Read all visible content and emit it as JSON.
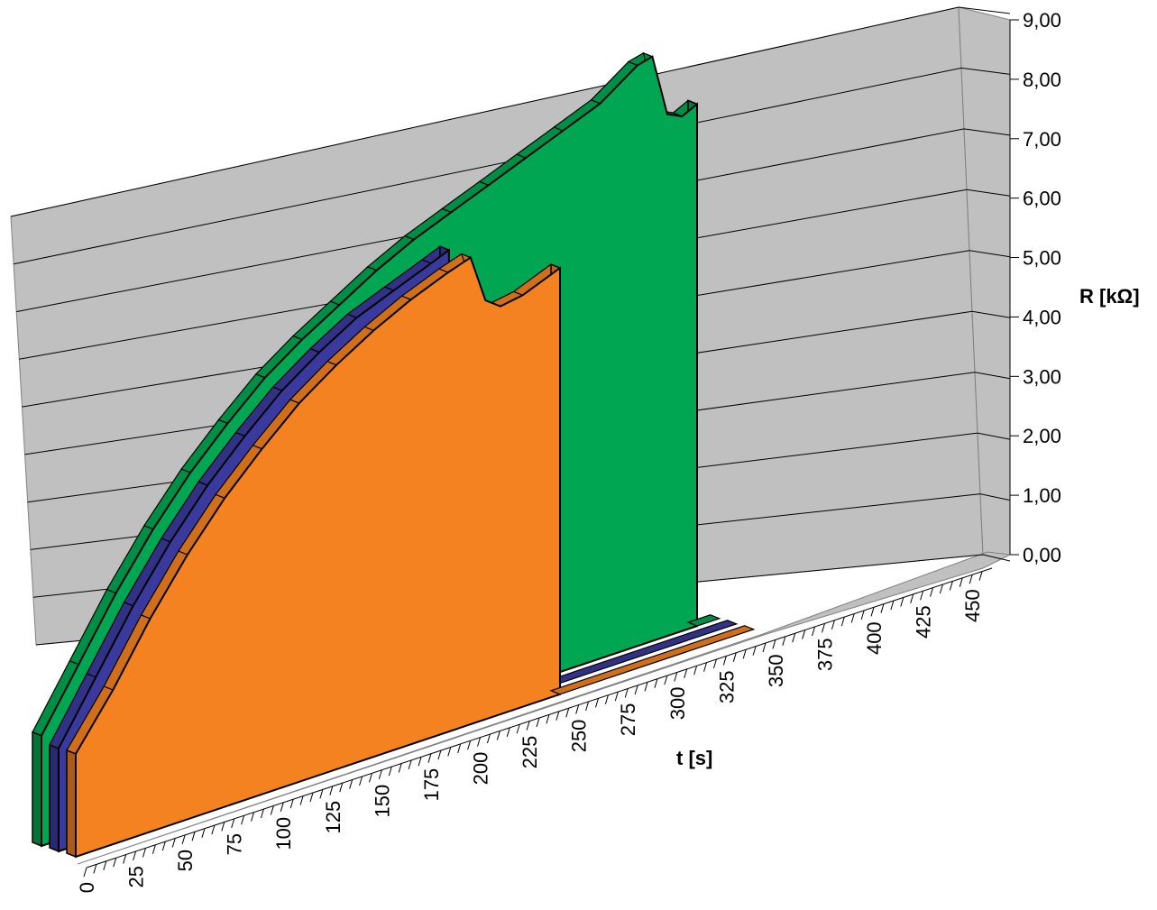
{
  "chart_data": {
    "type": "area",
    "title": "",
    "xlabel": "t [s]",
    "ylabel": "R [kΩ]",
    "xlim": [
      0,
      460
    ],
    "ylim": [
      0,
      9
    ],
    "x_ticks": [
      "0",
      "25",
      "50",
      "75",
      "100",
      "125",
      "150",
      "175",
      "200",
      "225",
      "250",
      "275",
      "300",
      "325",
      "350",
      "375",
      "400",
      "425",
      "450"
    ],
    "y_ticks": [
      "0,00",
      "1,00",
      "2,00",
      "3,00",
      "4,00",
      "5,00",
      "6,00",
      "7,00",
      "8,00",
      "9,00"
    ],
    "grid": true,
    "legend": "none",
    "series": [
      {
        "color": "#00a651",
        "x": [
          0,
          25,
          50,
          75,
          100,
          125,
          150,
          175,
          200,
          225,
          250,
          275,
          300,
          325,
          350,
          375,
          400,
          410,
          420,
          430,
          440
        ],
        "values": [
          1.5,
          2.3,
          3.1,
          3.8,
          4.4,
          4.9,
          5.35,
          5.7,
          6.0,
          6.3,
          6.55,
          6.75,
          6.95,
          7.15,
          7.35,
          7.55,
          7.9,
          7.95,
          7.1,
          7.0,
          7.1
        ]
      },
      {
        "color": "#3a3a9e",
        "x": [
          0,
          25,
          50,
          75,
          100,
          125,
          150,
          175,
          200,
          225,
          250,
          262
        ],
        "values": [
          1.4,
          2.2,
          3.0,
          3.7,
          4.3,
          4.8,
          5.25,
          5.6,
          5.9,
          6.1,
          6.3,
          6.4
        ]
      },
      {
        "color": "#f58220",
        "x": [
          0,
          25,
          50,
          75,
          100,
          125,
          150,
          175,
          200,
          225,
          250,
          265,
          275,
          285,
          300,
          325
        ],
        "values": [
          1.4,
          2.1,
          2.9,
          3.6,
          4.2,
          4.7,
          5.15,
          5.5,
          5.8,
          6.05,
          6.25,
          6.35,
          5.7,
          5.55,
          5.6,
          5.8
        ]
      }
    ]
  }
}
